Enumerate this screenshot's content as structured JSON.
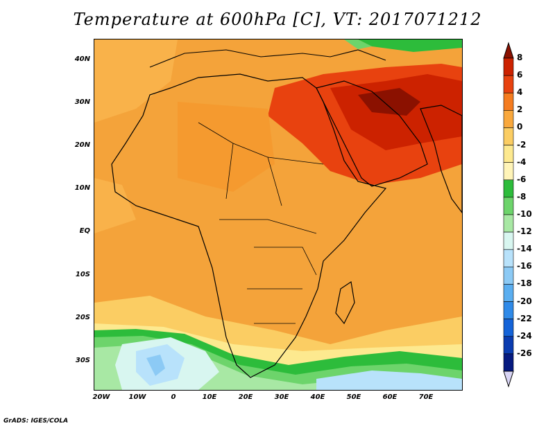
{
  "title": "Temperature at 600hPa [C], VT: 2017071212",
  "credit": "GrADS: IGES/COLA",
  "lat_labels": [
    "40N",
    "30N",
    "20N",
    "10N",
    "EQ",
    "10S",
    "20S",
    "30S"
  ],
  "lon_labels": [
    "20W",
    "10W",
    "0",
    "10E",
    "20E",
    "30E",
    "40E",
    "50E",
    "60E",
    "70E"
  ],
  "colorbar": {
    "labels": [
      "8",
      "6",
      "4",
      "2",
      "0",
      "-2",
      "-4",
      "-6",
      "-8",
      "-10",
      "-12",
      "-14",
      "-16",
      "-18",
      "-20",
      "-22",
      "-24",
      "-26"
    ],
    "colors": [
      "#8b1100",
      "#cc2200",
      "#e8420f",
      "#f57c1f",
      "#f9a83d",
      "#fbcd63",
      "#fde98f",
      "#fff4b8",
      "#2dbc3b",
      "#6dd46b",
      "#a8e8a4",
      "#d8f6f0",
      "#b8e2fb",
      "#8ccaf5",
      "#5aaef0",
      "#2f8ae8",
      "#1463d8",
      "#0a3cb0",
      "#061a80",
      "#d8d4f4"
    ]
  },
  "map": {
    "region": "Africa and Middle East",
    "lon_range": [
      -22,
      80
    ],
    "lat_range": [
      -37,
      45
    ],
    "background_color": "#f4a33a"
  }
}
